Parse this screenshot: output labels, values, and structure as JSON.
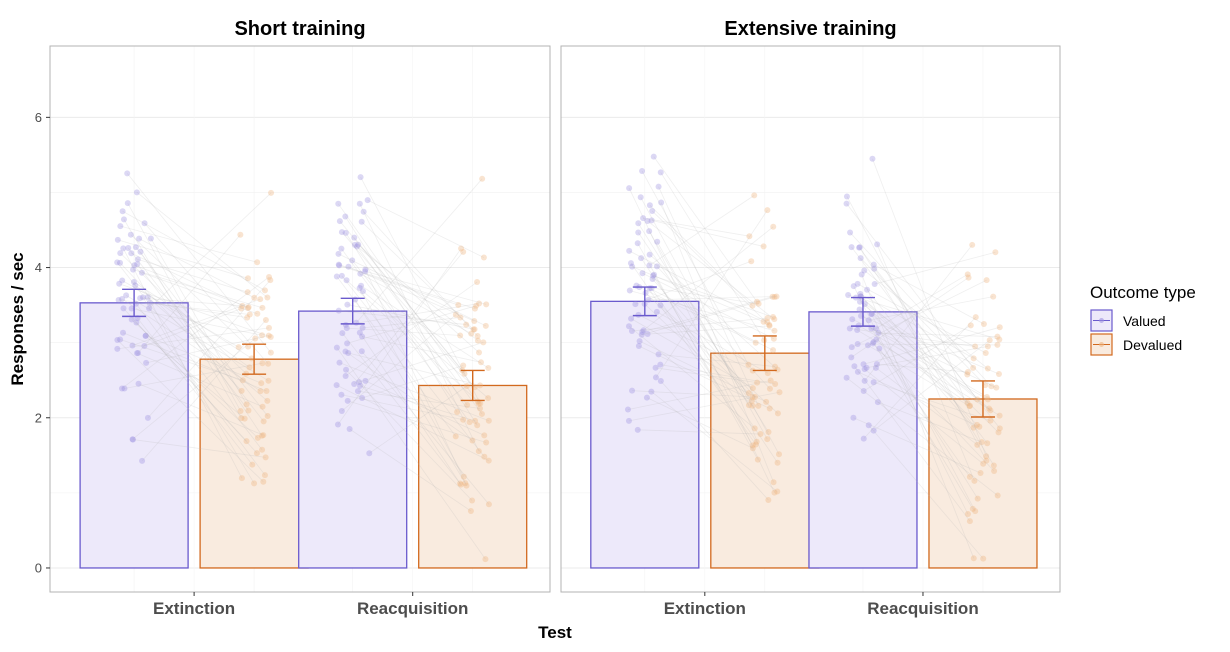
{
  "chart_data": {
    "type": "bar",
    "xlabel": "Test",
    "ylabel": "Responses / sec",
    "ylim": [
      -0.32,
      6.95
    ],
    "yticks": [
      0,
      2,
      4,
      6
    ],
    "categories": [
      "Extinction",
      "Reacquisition"
    ],
    "legend": {
      "title": "Outcome type",
      "placement": "right",
      "entries": [
        "Valued",
        "Devalued"
      ]
    },
    "colors": {
      "Valued": {
        "line": "#6a5acd",
        "fill": "#ede9fa",
        "point": "#9b8fe0"
      },
      "Devalued": {
        "line": "#d2691e",
        "fill": "#f9ebdf",
        "point": "#eeb27c"
      }
    },
    "grid": true,
    "panels": [
      {
        "title": "Short training",
        "series": [
          {
            "name": "Valued",
            "values": [
              3.53,
              3.42
            ],
            "error": [
              0.18,
              0.17
            ]
          },
          {
            "name": "Devalued",
            "values": [
              2.78,
              2.43
            ],
            "error": [
              0.2,
              0.2
            ]
          }
        ]
      },
      {
        "title": "Extensive training",
        "series": [
          {
            "name": "Valued",
            "values": [
              3.55,
              3.41
            ],
            "error": [
              0.19,
              0.19
            ]
          },
          {
            "name": "Devalued",
            "values": [
              2.86,
              2.25
            ],
            "error": [
              0.23,
              0.24
            ]
          }
        ]
      }
    ]
  }
}
